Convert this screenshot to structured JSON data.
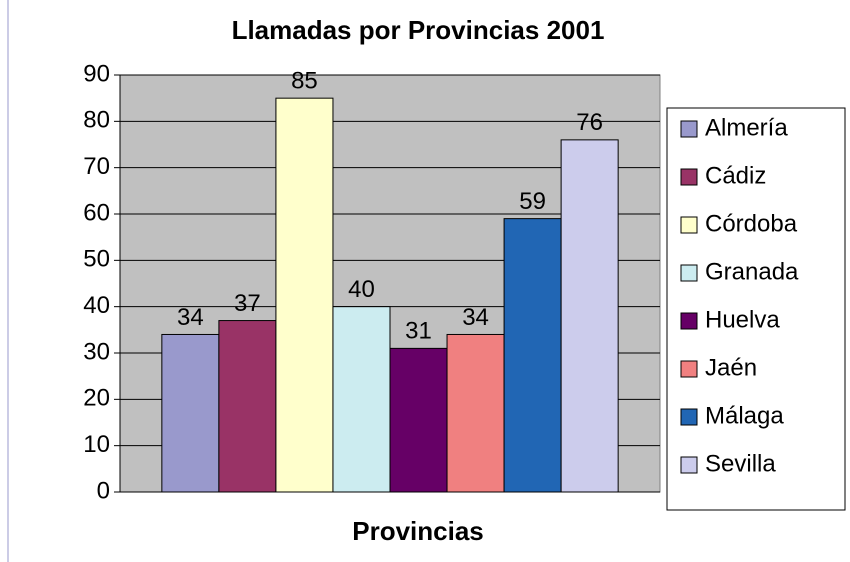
{
  "chart_data": {
    "type": "bar",
    "title": "Llamadas por Provincias 2001",
    "x_label": "Provincias",
    "categories": [
      null
    ],
    "series": [
      {
        "name": "Almería",
        "color": "#9999cc",
        "values": [
          34
        ]
      },
      {
        "name": "Cádiz",
        "color": "#993366",
        "values": [
          37
        ]
      },
      {
        "name": "Córdoba",
        "color": "#ffffcc",
        "values": [
          85
        ]
      },
      {
        "name": "Granada",
        "color": "#ccecf0",
        "values": [
          40
        ]
      },
      {
        "name": "Huelva",
        "color": "#660066",
        "values": [
          31
        ]
      },
      {
        "name": "Jaén",
        "color": "#f08080",
        "values": [
          34
        ]
      },
      {
        "name": "Málaga",
        "color": "#2166b4",
        "values": [
          59
        ]
      },
      {
        "name": "Sevilla",
        "color": "#ccccec",
        "values": [
          76
        ]
      }
    ],
    "ylim": [
      0,
      90
    ],
    "yticks": [
      0,
      10,
      20,
      30,
      40,
      50,
      60,
      70,
      80,
      90
    ],
    "grid": true,
    "legend": "right",
    "plot_background": "#c0c0c0"
  }
}
